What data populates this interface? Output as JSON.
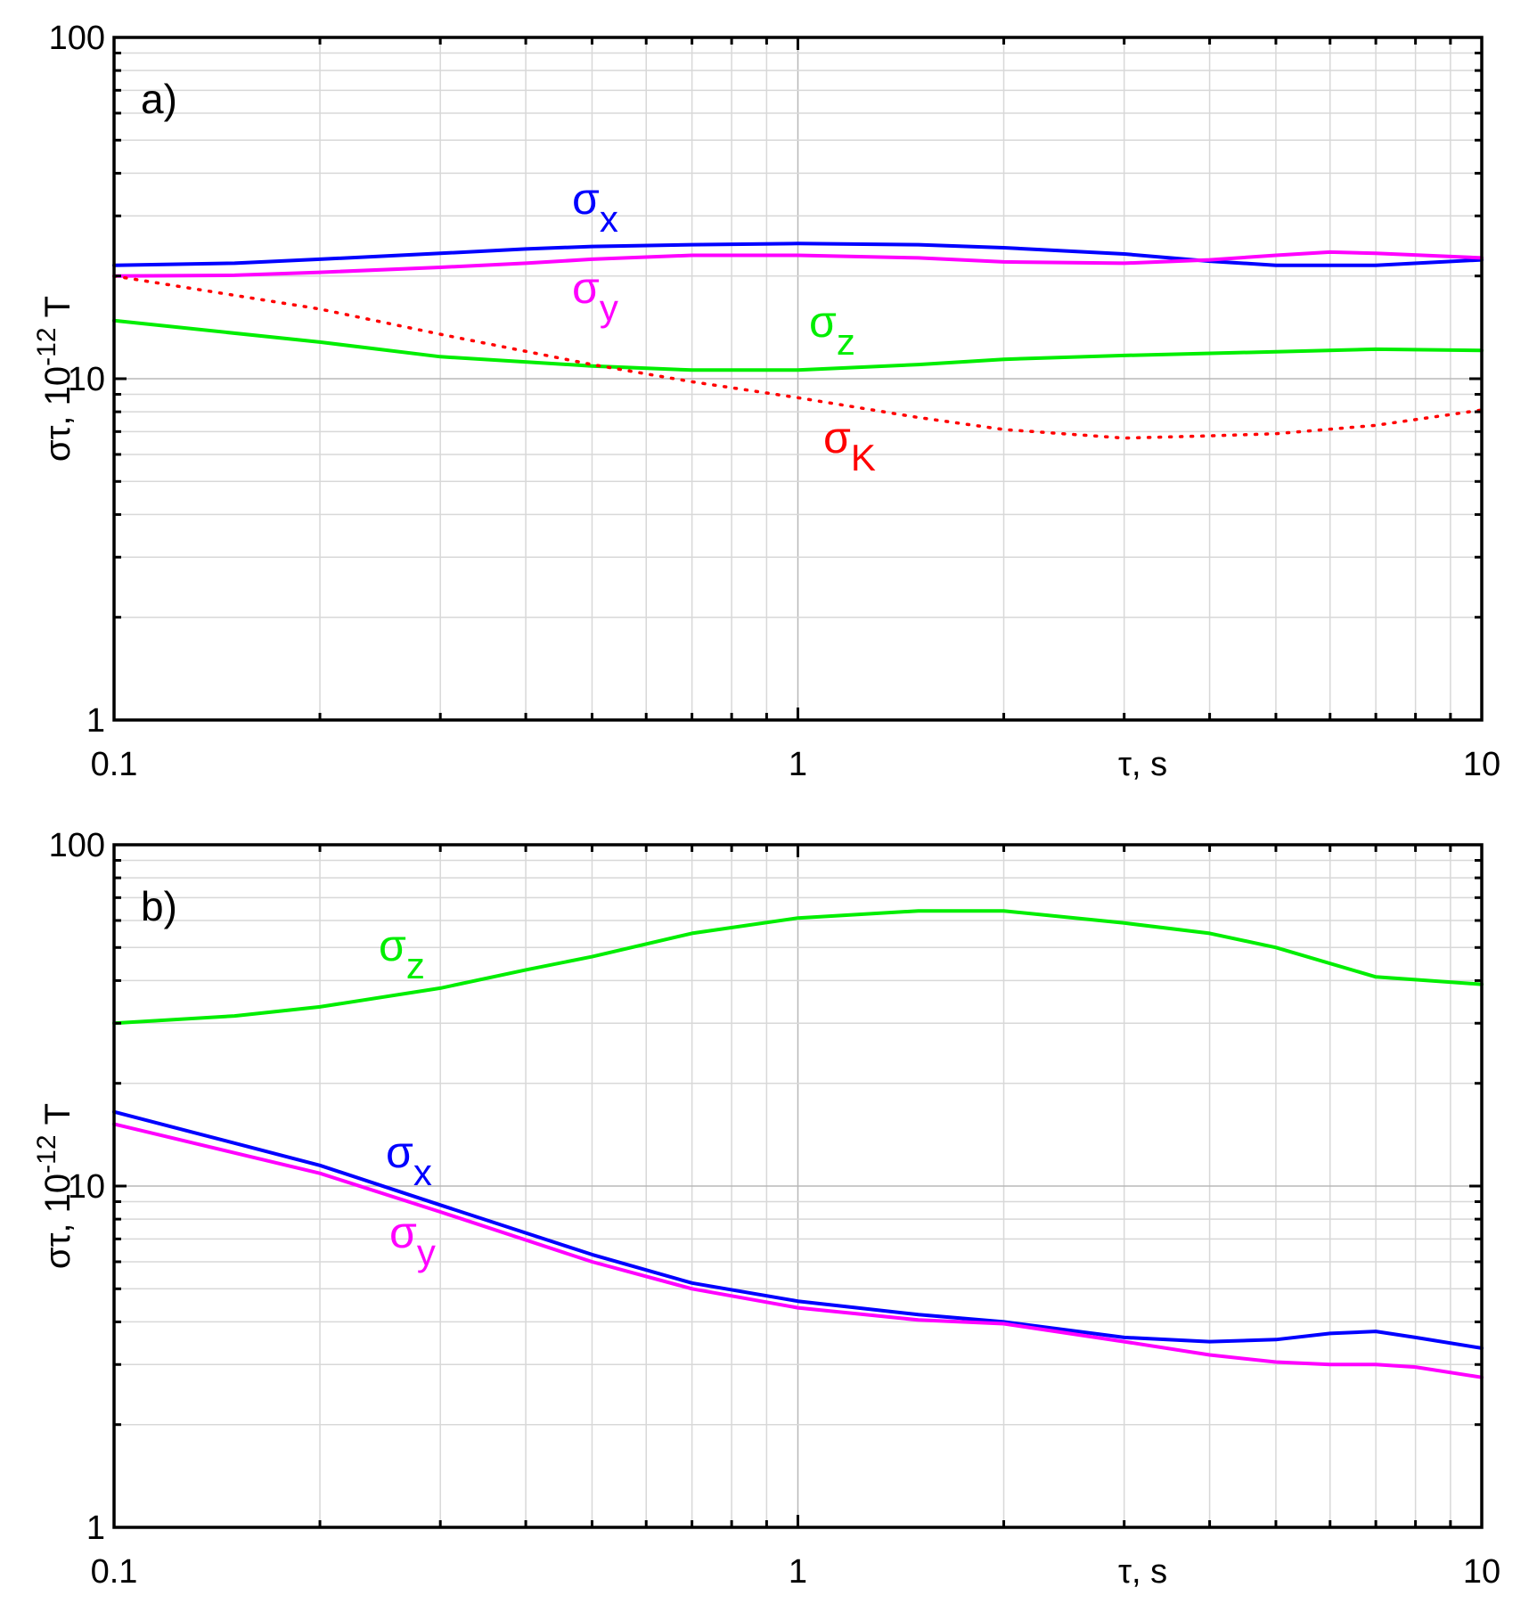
{
  "chart_data": [
    {
      "type": "line",
      "panel_label": "a)",
      "xlabel": "τ, s",
      "ylabel": "στ, 10-12 T",
      "ylabel_parts": {
        "main": "στ, 10",
        "sup": "-12",
        "tail": " T"
      },
      "xscale": "log",
      "yscale": "log",
      "xlim": [
        0.1,
        10
      ],
      "ylim": [
        1,
        100
      ],
      "x_ticks": [
        0.1,
        1,
        10
      ],
      "x_tick_labels": [
        "0.1",
        "1",
        "10"
      ],
      "y_ticks": [
        1,
        10,
        100
      ],
      "y_tick_labels": [
        "1",
        "10",
        "100"
      ],
      "grid": true,
      "series": [
        {
          "name": "σx",
          "sym": "σ",
          "sub": "x",
          "color": "#0000ff",
          "style": "solid",
          "x": [
            0.1,
            0.15,
            0.2,
            0.3,
            0.4,
            0.5,
            0.7,
            1.0,
            1.5,
            2.0,
            3.0,
            4.0,
            5.0,
            7.0,
            10.0
          ],
          "y": [
            21.5,
            21.8,
            22.4,
            23.3,
            24.0,
            24.4,
            24.7,
            24.9,
            24.7,
            24.2,
            23.2,
            22.1,
            21.5,
            21.5,
            22.3
          ]
        },
        {
          "name": "σy",
          "sym": "σ",
          "sub": "y",
          "color": "#ff00ff",
          "style": "solid",
          "x": [
            0.1,
            0.15,
            0.2,
            0.3,
            0.4,
            0.5,
            0.7,
            1.0,
            1.5,
            2.0,
            3.0,
            4.0,
            5.0,
            6.0,
            7.0,
            10.0
          ],
          "y": [
            20.0,
            20.1,
            20.5,
            21.2,
            21.8,
            22.4,
            23.0,
            23.0,
            22.6,
            22.0,
            21.8,
            22.3,
            23.0,
            23.5,
            23.3,
            22.6
          ]
        },
        {
          "name": "σz",
          "sym": "σ",
          "sub": "z",
          "color": "#00ee00",
          "style": "solid",
          "x": [
            0.1,
            0.2,
            0.3,
            0.5,
            0.7,
            1.0,
            1.5,
            2.0,
            3.0,
            5.0,
            7.0,
            10.0
          ],
          "y": [
            14.8,
            12.8,
            11.6,
            10.9,
            10.6,
            10.6,
            11.0,
            11.4,
            11.7,
            12.0,
            12.2,
            12.1
          ]
        },
        {
          "name": "σK",
          "sym": "σ",
          "sub": "K",
          "color": "#ff0000",
          "style": "dotted",
          "x": [
            0.1,
            0.2,
            0.3,
            0.5,
            0.7,
            1.0,
            1.5,
            2.0,
            3.0,
            4.0,
            5.0,
            7.0,
            10.0
          ],
          "y": [
            20.0,
            16.0,
            13.5,
            11.0,
            9.8,
            8.8,
            7.7,
            7.1,
            6.7,
            6.8,
            6.9,
            7.3,
            8.1
          ]
        }
      ]
    },
    {
      "type": "line",
      "panel_label": "b)",
      "xlabel": "τ, s",
      "ylabel": "στ, 10-12 T",
      "ylabel_parts": {
        "main": "στ, 10",
        "sup": "-12",
        "tail": " T"
      },
      "xscale": "log",
      "yscale": "log",
      "xlim": [
        0.1,
        10
      ],
      "ylim": [
        1,
        100
      ],
      "x_ticks": [
        0.1,
        1,
        10
      ],
      "x_tick_labels": [
        "0.1",
        "1",
        "10"
      ],
      "y_ticks": [
        1,
        10,
        100
      ],
      "y_tick_labels": [
        "1",
        "10",
        "100"
      ],
      "grid": true,
      "series": [
        {
          "name": "σz",
          "sym": "σ",
          "sub": "z",
          "color": "#00ee00",
          "style": "solid",
          "x": [
            0.1,
            0.15,
            0.2,
            0.3,
            0.4,
            0.5,
            0.7,
            1.0,
            1.5,
            2.0,
            3.0,
            4.0,
            5.0,
            7.0,
            10.0
          ],
          "y": [
            30.0,
            31.5,
            33.5,
            38.0,
            43.0,
            47.0,
            55.0,
            61.0,
            64.0,
            64.0,
            59.0,
            55.0,
            50.0,
            41.0,
            39.0
          ]
        },
        {
          "name": "σx",
          "sym": "σ",
          "sub": "x",
          "color": "#0000ff",
          "style": "solid",
          "x": [
            0.1,
            0.2,
            0.3,
            0.5,
            0.7,
            1.0,
            1.5,
            2.0,
            3.0,
            4.0,
            5.0,
            6.0,
            7.0,
            8.0,
            10.0
          ],
          "y": [
            16.5,
            11.5,
            8.8,
            6.3,
            5.2,
            4.6,
            4.2,
            4.0,
            3.6,
            3.5,
            3.55,
            3.7,
            3.75,
            3.6,
            3.35
          ]
        },
        {
          "name": "σy",
          "sym": "σ",
          "sub": "y",
          "color": "#ff00ff",
          "style": "solid",
          "x": [
            0.1,
            0.2,
            0.3,
            0.5,
            0.7,
            1.0,
            1.5,
            2.0,
            3.0,
            4.0,
            5.0,
            6.0,
            7.0,
            8.0,
            10.0
          ],
          "y": [
            15.2,
            10.9,
            8.4,
            6.0,
            5.0,
            4.4,
            4.05,
            3.95,
            3.5,
            3.2,
            3.05,
            3.0,
            3.0,
            2.95,
            2.75
          ]
        }
      ]
    }
  ]
}
